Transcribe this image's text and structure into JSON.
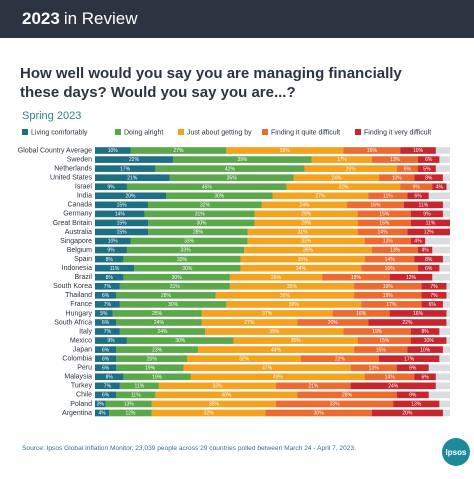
{
  "header": {
    "year": "2023",
    "label": "in Review"
  },
  "chart_data": {
    "type": "stacked-bar",
    "title": "How well would you say you are managing financially these days? Would you say you are...?",
    "subtitle": "Spring 2023",
    "categories": [
      "Global Country Average",
      "Sweden",
      "Netherlands",
      "United States",
      "Israel",
      "India",
      "Canada",
      "Germany",
      "Great Britain",
      "Australia",
      "Singapore",
      "Belgium",
      "Spain",
      "Indonesia",
      "Brazil",
      "South Korea",
      "Thailand",
      "France",
      "Hungary",
      "South Africa",
      "Italy",
      "Mexico",
      "Japan",
      "Colombia",
      "Peru",
      "Malaysia",
      "Turkey",
      "Chile",
      "Poland",
      "Argentina"
    ],
    "xlim": [
      0,
      100
    ],
    "series": [
      {
        "name": "Living comfortably",
        "color": "#1d6f83",
        "values": [
          10,
          22,
          17,
          21,
          9,
          20,
          15,
          14,
          15,
          15,
          10,
          9,
          8,
          11,
          8,
          7,
          6,
          7,
          5,
          6,
          7,
          9,
          6,
          6,
          6,
          8,
          7,
          6,
          3,
          4
        ],
        "value_labels": [
          "10%",
          "22%",
          "17%",
          "21%",
          "9%",
          "20%",
          "15%",
          "14%",
          "15%",
          "15%",
          "10%",
          "9%",
          "8%",
          "11%",
          "8%",
          "7%",
          "6%",
          "7%",
          "5%",
          "6%",
          "7%",
          "9%",
          "6%",
          "6%",
          "6%",
          "8%",
          "7%",
          "6%",
          "3%",
          "4%"
        ]
      },
      {
        "name": "Doing alright",
        "color": "#5ba84a",
        "values": [
          27,
          39,
          42,
          35,
          45,
          30,
          32,
          31,
          30,
          28,
          33,
          33,
          33,
          30,
          30,
          31,
          28,
          30,
          25,
          24,
          24,
          30,
          23,
          20,
          19,
          19,
          11,
          11,
          13,
          12
        ],
        "value_labels": [
          "27%",
          "39%",
          "42%",
          "35%",
          "45%",
          "30%",
          "32%",
          "31%",
          "30%",
          "28%",
          "33%",
          "33%",
          "33%",
          "30%",
          "30%",
          "31%",
          "28%",
          "30%",
          "25%",
          "24%",
          "24%",
          "30%",
          "23%",
          "20%",
          "19%",
          "19%",
          "11%",
          "11%",
          "13%",
          "12%"
        ]
      },
      {
        "name": "Just about getting by",
        "color": "#f5a21c",
        "values": [
          33,
          17,
          26,
          24,
          32,
          27,
          24,
          29,
          29,
          31,
          33,
          36,
          35,
          34,
          26,
          35,
          39,
          38,
          37,
          27,
          39,
          35,
          44,
          32,
          47,
          49,
          33,
          40,
          35,
          32
        ],
        "value_labels": [
          "33%",
          "17%",
          "26%",
          "24%",
          "32%",
          "27%",
          "24%",
          "29%",
          "29%",
          "31%",
          "33%",
          "36%",
          "35%",
          "34%",
          "26%",
          "35%",
          "39%",
          "38%",
          "37%",
          "27%",
          "39%",
          "35%",
          "44%",
          "32%",
          "47%",
          "49%",
          "33%",
          "40%",
          "35%",
          "32%"
        ]
      },
      {
        "name": "Finding it quite difficult",
        "color": "#ee6a2d",
        "values": [
          16,
          13,
          6,
          10,
          9,
          11,
          16,
          15,
          15,
          14,
          13,
          13,
          14,
          16,
          19,
          19,
          19,
          17,
          16,
          20,
          19,
          15,
          15,
          22,
          13,
          14,
          21,
          28,
          33,
          30
        ],
        "value_labels": [
          "16%",
          "13%",
          "6%",
          "10%",
          "9%",
          "11%",
          "16%",
          "15%",
          "15%",
          "14%",
          "13%",
          "13%",
          "14%",
          "16%",
          "19%",
          "19%",
          "19%",
          "17%",
          "16%",
          "20%",
          "19%",
          "15%",
          "15%",
          "22%",
          "13%",
          "14%",
          "21%",
          "28%",
          "33%",
          "30%"
        ]
      },
      {
        "name": "Finding it very difficult",
        "color": "#c9252c",
        "values": [
          10,
          6,
          5,
          8,
          4,
          6,
          11,
          9,
          11,
          12,
          4,
          4,
          8,
          6,
          12,
          7,
          7,
          6,
          16,
          22,
          8,
          10,
          10,
          17,
          9,
          6,
          24,
          9,
          13,
          20
        ],
        "value_labels": [
          "10%",
          "6%",
          "5%",
          "8%",
          "4%",
          "6%",
          "11%",
          "9%",
          "11%",
          "12%",
          "4%",
          "4%",
          "8%",
          "6%",
          "12%",
          "7%",
          "7%",
          "6%",
          "16%",
          "22%",
          "8%",
          "10%",
          "10%",
          "17%",
          "9%",
          "6%",
          "24%",
          "9%",
          "13%",
          "20%"
        ]
      }
    ],
    "source": "Source: Ipsos Global Inflation Monitor, 23,039 people across 29 countries polled between March 24 - April 7, 2023."
  },
  "logo": "Ipsos"
}
